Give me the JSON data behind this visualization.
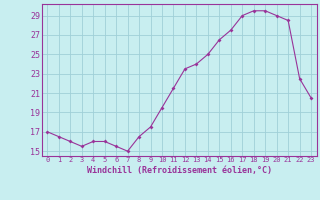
{
  "x": [
    0,
    1,
    2,
    3,
    4,
    5,
    6,
    7,
    8,
    9,
    10,
    11,
    12,
    13,
    14,
    15,
    16,
    17,
    18,
    19,
    20,
    21,
    22,
    23
  ],
  "y": [
    17.0,
    16.5,
    16.0,
    15.5,
    16.0,
    16.0,
    15.5,
    15.0,
    16.5,
    17.5,
    19.5,
    21.5,
    23.5,
    24.0,
    25.0,
    26.5,
    27.5,
    29.0,
    29.5,
    29.5,
    29.0,
    28.5,
    22.5,
    20.5
  ],
  "line_color": "#993399",
  "marker_color": "#993399",
  "bg_color": "#c8eef0",
  "grid_color": "#a0d0d8",
  "xlabel": "Windchill (Refroidissement éolien,°C)",
  "yticks": [
    15,
    17,
    19,
    21,
    23,
    25,
    27,
    29
  ],
  "xticks": [
    0,
    1,
    2,
    3,
    4,
    5,
    6,
    7,
    8,
    9,
    10,
    11,
    12,
    13,
    14,
    15,
    16,
    17,
    18,
    19,
    20,
    21,
    22,
    23
  ],
  "xlim": [
    -0.5,
    23.5
  ],
  "ylim": [
    14.5,
    30.2
  ]
}
